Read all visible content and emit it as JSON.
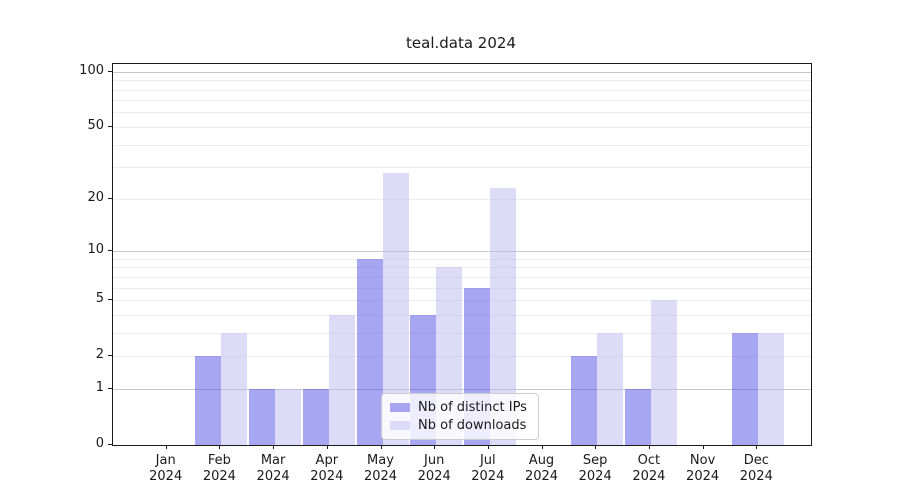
{
  "chart_data": {
    "type": "bar",
    "title": "teal.data 2024",
    "categories": [
      "Jan",
      "Feb",
      "Mar",
      "Apr",
      "May",
      "Jun",
      "Jul",
      "Aug",
      "Sep",
      "Oct",
      "Nov",
      "Dec"
    ],
    "year": "2024",
    "series": [
      {
        "name": "Nb of distinct IPs",
        "values": [
          0,
          2,
          1,
          1,
          9,
          4,
          6,
          0,
          2,
          1,
          0,
          3
        ],
        "bar_color": "rgba(77,77,229,0.5)",
        "legend_color": "#a6a6f2"
      },
      {
        "name": "Nb of downloads",
        "values": [
          0,
          3,
          1,
          4,
          28,
          8,
          23,
          0,
          3,
          5,
          0,
          3
        ],
        "bar_color": "rgba(185,185,241,0.5)",
        "legend_color": "#dcdcf8"
      }
    ],
    "yscale": "log1p",
    "ylim": [
      0,
      110
    ],
    "y_ticks": [
      0,
      1,
      2,
      5,
      10,
      20,
      50,
      100
    ],
    "y_gridlines_major": [
      1,
      10,
      100
    ],
    "y_gridlines_minor": [
      2,
      3,
      4,
      5,
      6,
      7,
      8,
      9,
      20,
      30,
      40,
      50,
      60,
      70,
      80,
      90
    ],
    "grid": true,
    "legend_position": "lower center"
  },
  "colors": {
    "major_grid": "#c9c9c9",
    "minor_grid": "#ededed",
    "axis": "#1a1a1a",
    "legend_border": "#cccccc",
    "legend_bg": "rgba(255,255,255,0.8)"
  }
}
